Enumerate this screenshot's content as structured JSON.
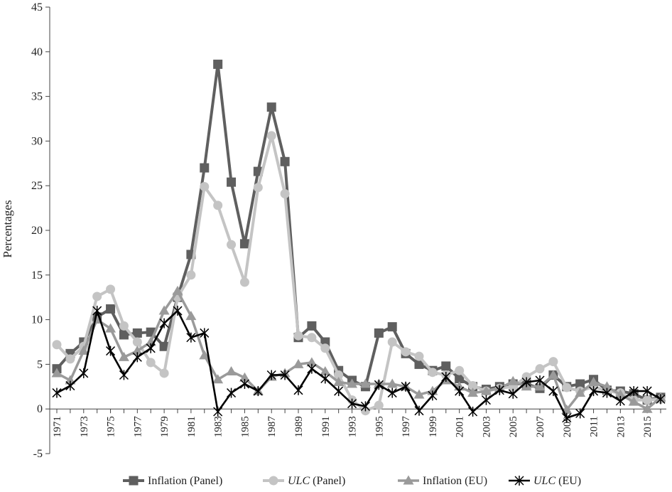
{
  "chart_data": {
    "type": "line",
    "title": "",
    "xlabel": "",
    "ylabel": "Percentages",
    "ylim": [
      -5,
      45
    ],
    "yticks": [
      -5,
      0,
      5,
      10,
      15,
      20,
      25,
      30,
      35,
      40,
      45
    ],
    "x": [
      1971,
      1972,
      1973,
      1974,
      1975,
      1976,
      1977,
      1978,
      1979,
      1980,
      1981,
      1982,
      1983,
      1984,
      1985,
      1986,
      1987,
      1988,
      1989,
      1990,
      1991,
      1992,
      1993,
      1994,
      1995,
      1996,
      1997,
      1998,
      1999,
      2000,
      2001,
      2002,
      2003,
      2004,
      2005,
      2006,
      2007,
      2008,
      2009,
      2010,
      2011,
      2012,
      2013,
      2014,
      2015,
      2016
    ],
    "xtick_labels": [
      "1971",
      "1973",
      "1975",
      "1977",
      "1979",
      "1981",
      "1983",
      "1985",
      "1987",
      "1989",
      "1991",
      "1993",
      "1995",
      "1997",
      "1999",
      "2001",
      "2003",
      "2005",
      "2007",
      "2009",
      "2011",
      "2013",
      "2015"
    ],
    "legend_position": "bottom",
    "grid": false,
    "series": [
      {
        "name": "Inflation (Panel)",
        "color": "#5f5f5f",
        "marker": "square",
        "values": [
          4.5,
          6.2,
          7.5,
          10.3,
          11.2,
          8.3,
          8.5,
          8.6,
          7.0,
          12.5,
          17.3,
          27.0,
          38.6,
          25.4,
          18.5,
          26.6,
          33.8,
          27.7,
          8.0,
          9.3,
          7.5,
          4.3,
          3.2,
          2.5,
          8.5,
          9.2,
          6.2,
          5.0,
          4.3,
          4.8,
          3.4,
          2.5,
          2.2,
          2.5,
          2.8,
          2.8,
          2.3,
          3.8,
          2.5,
          2.8,
          3.3,
          2.1,
          2.0,
          1.7,
          1.0,
          1.3
        ]
      },
      {
        "name": "ULC (Panel)",
        "name_italic": "ULC",
        "name_rest": " (Panel)",
        "color": "#c4c4c4",
        "marker": "circle",
        "values": [
          7.2,
          5.6,
          7.0,
          12.6,
          13.4,
          9.3,
          7.5,
          5.2,
          4.0,
          12.5,
          15.0,
          24.9,
          22.8,
          18.4,
          14.2,
          24.8,
          30.6,
          24.1,
          8.2,
          8.0,
          6.8,
          3.8,
          1.0,
          -0.2,
          0.4,
          7.5,
          6.4,
          5.9,
          4.1,
          3.8,
          4.3,
          2.6,
          2.0,
          2.3,
          2.5,
          3.6,
          4.5,
          5.3,
          2.4,
          2.0,
          2.5,
          2.0,
          1.8,
          1.0,
          1.0,
          1.1
        ]
      },
      {
        "name": "Inflation (EU)",
        "color": "#9a9a9a",
        "marker": "triangle",
        "values": [
          4.0,
          3.2,
          6.5,
          10.0,
          9.0,
          5.8,
          6.5,
          7.5,
          11.0,
          13.2,
          10.4,
          6.0,
          3.3,
          4.2,
          3.5,
          2.0,
          3.6,
          4.0,
          5.0,
          5.2,
          4.2,
          3.0,
          2.8,
          2.8,
          2.8,
          2.8,
          2.5,
          1.6,
          2.0,
          3.2,
          2.5,
          1.8,
          2.0,
          2.3,
          3.1,
          2.5,
          2.5,
          3.8,
          -0.1,
          1.8,
          3.0,
          2.5,
          1.6,
          0.8,
          0.0,
          1.3
        ]
      },
      {
        "name": "ULC (EU)",
        "name_italic": "ULC",
        "name_rest": " (EU)",
        "color": "#000000",
        "marker": "asterisk",
        "values": [
          1.8,
          2.6,
          4.0,
          11.0,
          6.5,
          3.8,
          5.8,
          6.8,
          9.6,
          11.0,
          8.0,
          8.5,
          -0.3,
          1.8,
          2.8,
          2.0,
          3.8,
          3.8,
          2.1,
          4.5,
          3.4,
          2.0,
          0.6,
          0.3,
          2.7,
          1.8,
          2.5,
          -0.2,
          1.5,
          3.6,
          2.0,
          -0.3,
          1.0,
          2.1,
          1.7,
          3.0,
          3.2,
          2.0,
          -1.0,
          -0.5,
          2.0,
          1.8,
          0.9,
          2.0,
          2.0,
          1.1
        ]
      }
    ]
  }
}
